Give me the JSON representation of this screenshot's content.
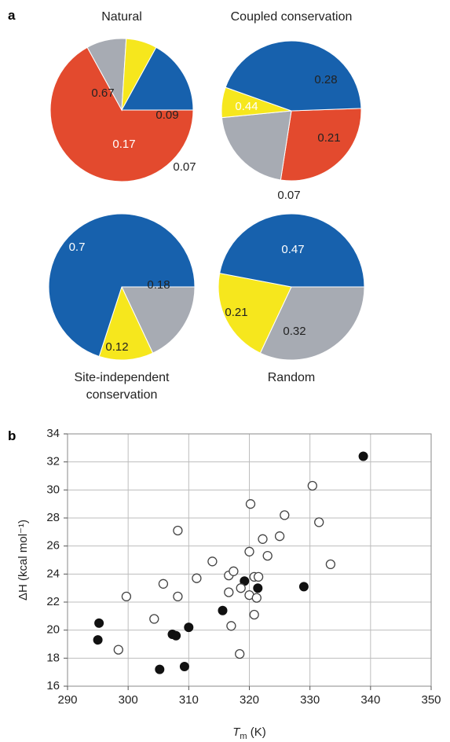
{
  "panels": {
    "a": "a",
    "b": "b"
  },
  "colors": {
    "blue": "#1761ad",
    "red": "#e34a2e",
    "yellow": "#f6e71d",
    "grey": "#a7abb3",
    "filled_marker": "#111111",
    "open_marker_stroke": "#444444"
  },
  "chart_data": [
    {
      "type": "pie",
      "title": "Natural",
      "slices": [
        {
          "label": "0.67",
          "value": 0.67,
          "color": "red"
        },
        {
          "label": "0.09",
          "value": 0.09,
          "color": "grey"
        },
        {
          "label": "0.07",
          "value": 0.07,
          "color": "yellow"
        },
        {
          "label": "0.17",
          "value": 0.17,
          "color": "blue"
        }
      ]
    },
    {
      "type": "pie",
      "title": "Coupled conservation",
      "slices": [
        {
          "label": "0.28",
          "value": 0.28,
          "color": "red"
        },
        {
          "label": "0.21",
          "value": 0.21,
          "color": "grey"
        },
        {
          "label": "0.07",
          "value": 0.07,
          "color": "yellow"
        },
        {
          "label": "0.44",
          "value": 0.44,
          "color": "blue"
        }
      ]
    },
    {
      "type": "pie",
      "title": "Site-independent conservation",
      "title_lines": [
        "Site-independent",
        "conservation"
      ],
      "slices": [
        {
          "label": "0.18",
          "value": 0.18,
          "color": "grey"
        },
        {
          "label": "0.12",
          "value": 0.12,
          "color": "yellow"
        },
        {
          "label": "0.7",
          "value": 0.7,
          "color": "blue"
        }
      ]
    },
    {
      "type": "pie",
      "title": "Random",
      "slices": [
        {
          "label": "0.32",
          "value": 0.32,
          "color": "grey"
        },
        {
          "label": "0.21",
          "value": 0.21,
          "color": "yellow"
        },
        {
          "label": "0.47",
          "value": 0.47,
          "color": "blue"
        }
      ]
    },
    {
      "type": "scatter",
      "xlabel_main": "T",
      "xlabel_sub": "m",
      "xlabel_rest": " (K)",
      "ylabel": "ΔH (kcal mol⁻¹)",
      "xlim": [
        290,
        350
      ],
      "ylim": [
        16,
        34
      ],
      "xticks": [
        290,
        300,
        310,
        320,
        330,
        340,
        350
      ],
      "yticks": [
        16,
        18,
        20,
        22,
        24,
        26,
        28,
        30,
        32,
        34
      ],
      "grid": true,
      "series": [
        {
          "marker": "filled",
          "points": [
            [
              295.2,
              20.5
            ],
            [
              295.0,
              19.3
            ],
            [
              305.2,
              17.2
            ],
            [
              307.3,
              19.7
            ],
            [
              307.9,
              19.6
            ],
            [
              309.3,
              17.4
            ],
            [
              310.0,
              20.2
            ],
            [
              315.6,
              21.4
            ],
            [
              319.2,
              23.5
            ],
            [
              321.4,
              23.0
            ],
            [
              329.0,
              23.1
            ],
            [
              338.8,
              32.4
            ]
          ]
        },
        {
          "marker": "open",
          "points": [
            [
              298.4,
              18.6
            ],
            [
              299.7,
              22.4
            ],
            [
              304.3,
              20.8
            ],
            [
              305.8,
              23.3
            ],
            [
              308.2,
              27.1
            ],
            [
              308.2,
              22.4
            ],
            [
              311.3,
              23.7
            ],
            [
              313.9,
              24.9
            ],
            [
              316.6,
              23.9
            ],
            [
              316.6,
              22.7
            ],
            [
              317.0,
              20.3
            ],
            [
              317.4,
              24.2
            ],
            [
              318.6,
              23.0
            ],
            [
              318.4,
              18.3
            ],
            [
              320.0,
              25.6
            ],
            [
              320.2,
              29.0
            ],
            [
              320.0,
              22.5
            ],
            [
              320.8,
              23.8
            ],
            [
              321.5,
              23.8
            ],
            [
              321.2,
              22.3
            ],
            [
              320.8,
              21.1
            ],
            [
              322.2,
              26.5
            ],
            [
              323.0,
              25.3
            ],
            [
              325.0,
              26.7
            ],
            [
              325.8,
              28.2
            ],
            [
              330.4,
              30.3
            ],
            [
              331.5,
              27.7
            ],
            [
              333.4,
              24.7
            ]
          ]
        }
      ]
    }
  ]
}
